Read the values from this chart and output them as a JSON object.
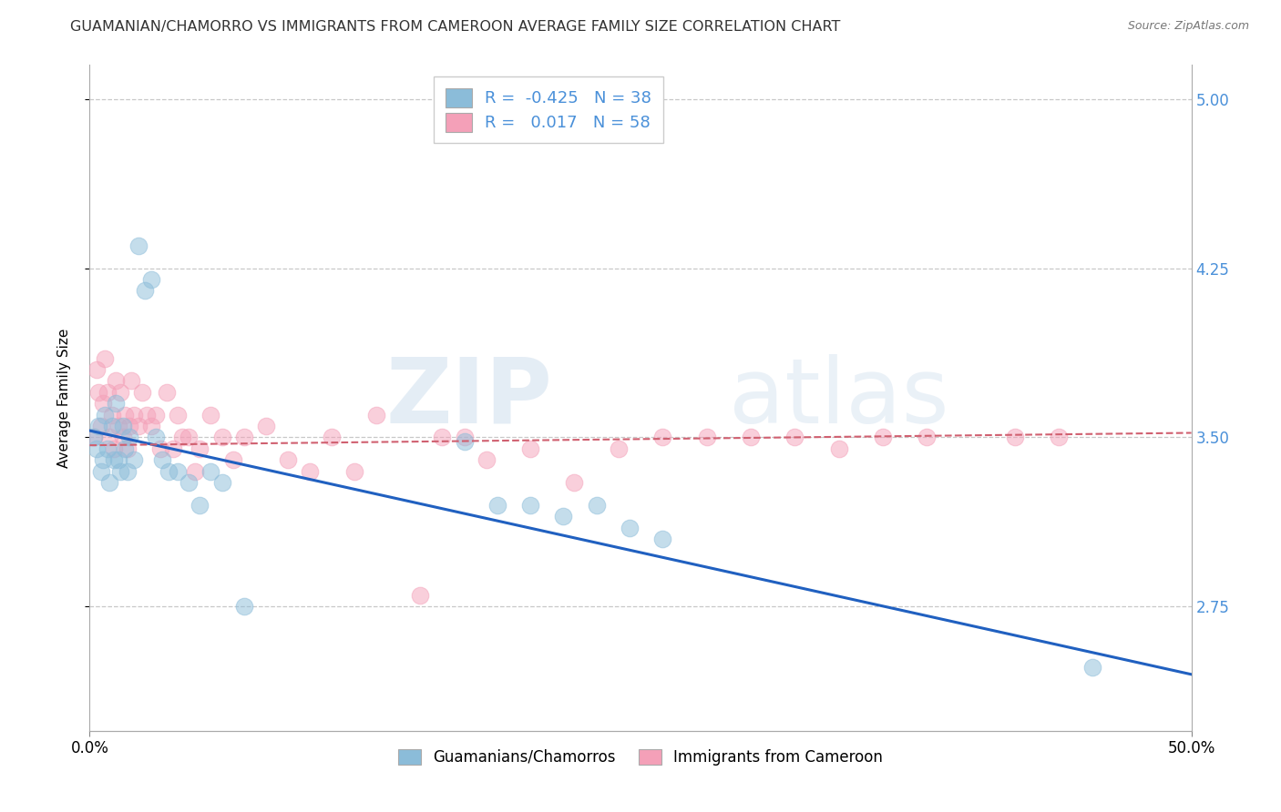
{
  "title": "GUAMANIAN/CHAMORRO VS IMMIGRANTS FROM CAMEROON AVERAGE FAMILY SIZE CORRELATION CHART",
  "source": "Source: ZipAtlas.com",
  "ylabel": "Average Family Size",
  "xlim": [
    0.0,
    0.5
  ],
  "ylim": [
    2.2,
    5.15
  ],
  "yticks": [
    2.75,
    3.5,
    4.25,
    5.0
  ],
  "xticklabels": [
    "0.0%",
    "50.0%"
  ],
  "yticklabels": [
    "2.75",
    "3.50",
    "4.25",
    "5.00"
  ],
  "blue_R": -0.425,
  "blue_N": 38,
  "pink_R": 0.017,
  "pink_N": 58,
  "blue_scatter_x": [
    0.002,
    0.003,
    0.004,
    0.005,
    0.006,
    0.007,
    0.008,
    0.009,
    0.01,
    0.011,
    0.012,
    0.013,
    0.014,
    0.015,
    0.016,
    0.017,
    0.018,
    0.02,
    0.022,
    0.025,
    0.028,
    0.03,
    0.033,
    0.036,
    0.04,
    0.045,
    0.05,
    0.055,
    0.06,
    0.07,
    0.17,
    0.185,
    0.2,
    0.215,
    0.23,
    0.245,
    0.26,
    0.455
  ],
  "blue_scatter_y": [
    3.5,
    3.45,
    3.55,
    3.35,
    3.4,
    3.6,
    3.45,
    3.3,
    3.55,
    3.4,
    3.65,
    3.4,
    3.35,
    3.55,
    3.45,
    3.35,
    3.5,
    3.4,
    4.35,
    4.15,
    4.2,
    3.5,
    3.4,
    3.35,
    3.35,
    3.3,
    3.2,
    3.35,
    3.3,
    2.75,
    3.48,
    3.2,
    3.2,
    3.15,
    3.2,
    3.1,
    3.05,
    2.48
  ],
  "pink_scatter_x": [
    0.002,
    0.003,
    0.004,
    0.005,
    0.006,
    0.007,
    0.008,
    0.009,
    0.01,
    0.011,
    0.012,
    0.013,
    0.014,
    0.015,
    0.016,
    0.017,
    0.018,
    0.019,
    0.02,
    0.022,
    0.024,
    0.026,
    0.028,
    0.03,
    0.032,
    0.035,
    0.038,
    0.04,
    0.042,
    0.045,
    0.048,
    0.05,
    0.055,
    0.06,
    0.065,
    0.07,
    0.08,
    0.09,
    0.1,
    0.11,
    0.12,
    0.13,
    0.15,
    0.16,
    0.17,
    0.18,
    0.2,
    0.22,
    0.24,
    0.26,
    0.28,
    0.3,
    0.32,
    0.34,
    0.36,
    0.38,
    0.42,
    0.44
  ],
  "pink_scatter_y": [
    3.5,
    3.8,
    3.7,
    3.55,
    3.65,
    3.85,
    3.7,
    3.5,
    3.6,
    3.45,
    3.75,
    3.55,
    3.7,
    3.5,
    3.6,
    3.45,
    3.55,
    3.75,
    3.6,
    3.55,
    3.7,
    3.6,
    3.55,
    3.6,
    3.45,
    3.7,
    3.45,
    3.6,
    3.5,
    3.5,
    3.35,
    3.45,
    3.6,
    3.5,
    3.4,
    3.5,
    3.55,
    3.4,
    3.35,
    3.5,
    3.35,
    3.6,
    2.8,
    3.5,
    3.5,
    3.4,
    3.45,
    3.3,
    3.45,
    3.5,
    3.5,
    3.5,
    3.5,
    3.45,
    3.5,
    3.5,
    3.5,
    3.5
  ],
  "blue_line_x": [
    0.0,
    0.5
  ],
  "blue_line_y": [
    3.53,
    2.45
  ],
  "pink_line_x": [
    0.0,
    0.5
  ],
  "pink_line_y": [
    3.465,
    3.52
  ],
  "scatter_size": 180,
  "scatter_alpha": 0.5,
  "blue_color": "#8bbcd9",
  "pink_color": "#f4a0b8",
  "blue_line_color": "#2060c0",
  "pink_line_color": "#d06070",
  "watermark_zip": "ZIP",
  "watermark_atlas": "atlas",
  "background_color": "#ffffff",
  "grid_color": "#c8c8c8",
  "title_fontsize": 11.5,
  "axis_label_fontsize": 11,
  "tick_fontsize": 12,
  "right_tick_color": "#4a90d9",
  "legend_fontsize": 13
}
